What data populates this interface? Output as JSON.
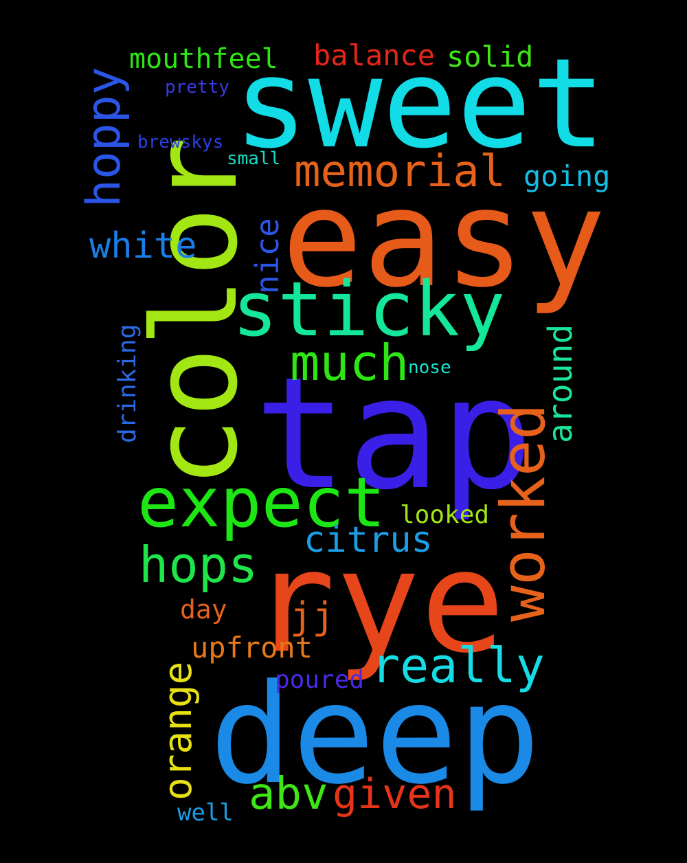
{
  "background": "#000000",
  "words": [
    {
      "text": "sweet",
      "color": "#12dce6"
    },
    {
      "text": "easy",
      "color": "#e65a1a"
    },
    {
      "text": "color",
      "color": "#a2e614",
      "vertical": true
    },
    {
      "text": "tap",
      "color": "#3a1fe6"
    },
    {
      "text": "rye",
      "color": "#e6461a"
    },
    {
      "text": "deep",
      "color": "#1a8ae6"
    },
    {
      "text": "sticky",
      "color": "#14e69a"
    },
    {
      "text": "expect",
      "color": "#1de614"
    },
    {
      "text": "worked",
      "color": "#e6621a",
      "vertical": true
    },
    {
      "text": "memorial",
      "color": "#e6621a"
    },
    {
      "text": "hoppy",
      "color": "#2a55e6",
      "vertical": true
    },
    {
      "text": "much",
      "color": "#2ee614"
    },
    {
      "text": "hops",
      "color": "#1ee64a"
    },
    {
      "text": "really",
      "color": "#16dce6"
    },
    {
      "text": "abv",
      "color": "#3ee614"
    },
    {
      "text": "given",
      "color": "#e6341a"
    },
    {
      "text": "orange",
      "color": "#e6e014",
      "vertical": true
    },
    {
      "text": "white",
      "color": "#1a7ee6"
    },
    {
      "text": "citrus",
      "color": "#1a9ee6"
    },
    {
      "text": "around",
      "color": "#1ae69a",
      "vertical": true
    },
    {
      "text": "nice",
      "color": "#2a55e6",
      "vertical": true
    },
    {
      "text": "balance",
      "color": "#e6261a"
    },
    {
      "text": "solid",
      "color": "#3ee614"
    },
    {
      "text": "mouthfeel",
      "color": "#2ee614"
    },
    {
      "text": "going",
      "color": "#16bee6"
    },
    {
      "text": "upfront",
      "color": "#e6781a"
    },
    {
      "text": "jj",
      "color": "#e6621a"
    },
    {
      "text": "drinking",
      "color": "#2a6ae6",
      "vertical": true
    },
    {
      "text": "looked",
      "color": "#a2e614"
    },
    {
      "text": "day",
      "color": "#e6621a"
    },
    {
      "text": "poured",
      "color": "#4a2ae6"
    },
    {
      "text": "well",
      "color": "#1a9ee6"
    },
    {
      "text": "pretty",
      "color": "#3a3ae6"
    },
    {
      "text": "brewskys",
      "color": "#2a40e6"
    },
    {
      "text": "small",
      "color": "#16dcc4"
    },
    {
      "text": "nose",
      "color": "#16e6d2"
    }
  ]
}
